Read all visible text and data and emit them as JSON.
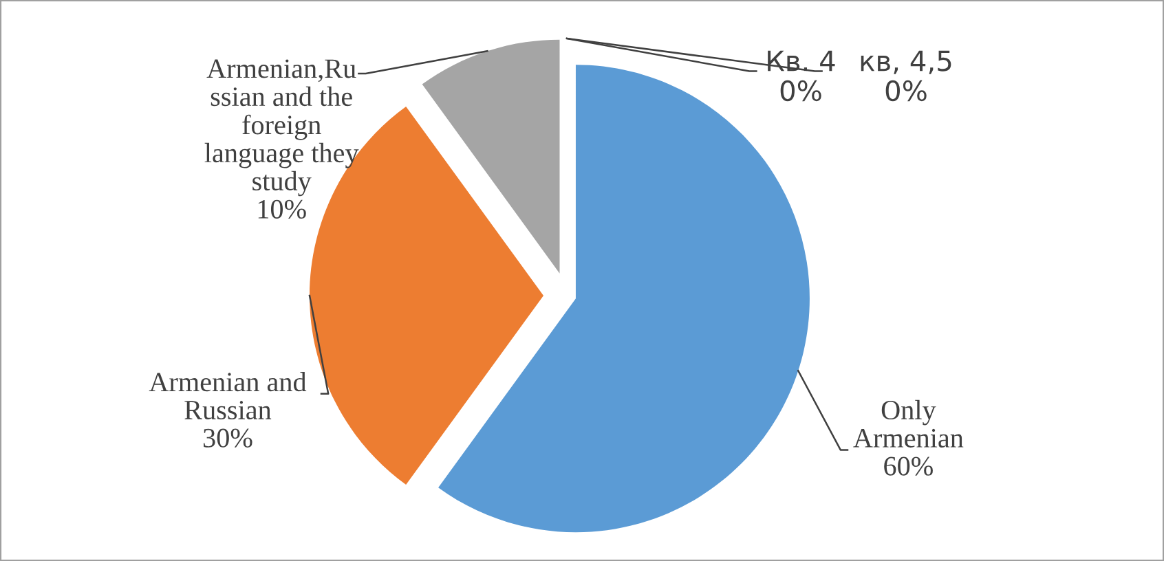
{
  "chart_data": {
    "type": "pie",
    "categories": [
      "Only\nArmenian",
      "Armenian and\nRussian",
      "Armenian,Ru\nssian and the\nforeign\nlanguage they\nstudy",
      "Кв. 4",
      "кв, 4,5"
    ],
    "values": [
      60,
      30,
      10,
      0,
      0
    ],
    "colors": [
      "#5b9bd5",
      "#ed7d31",
      "#a5a5a5",
      "#ffc000",
      "#4472c4"
    ],
    "value_labels": [
      "60%",
      "30%",
      "10%",
      "0%",
      "0%"
    ],
    "legend": false
  }
}
